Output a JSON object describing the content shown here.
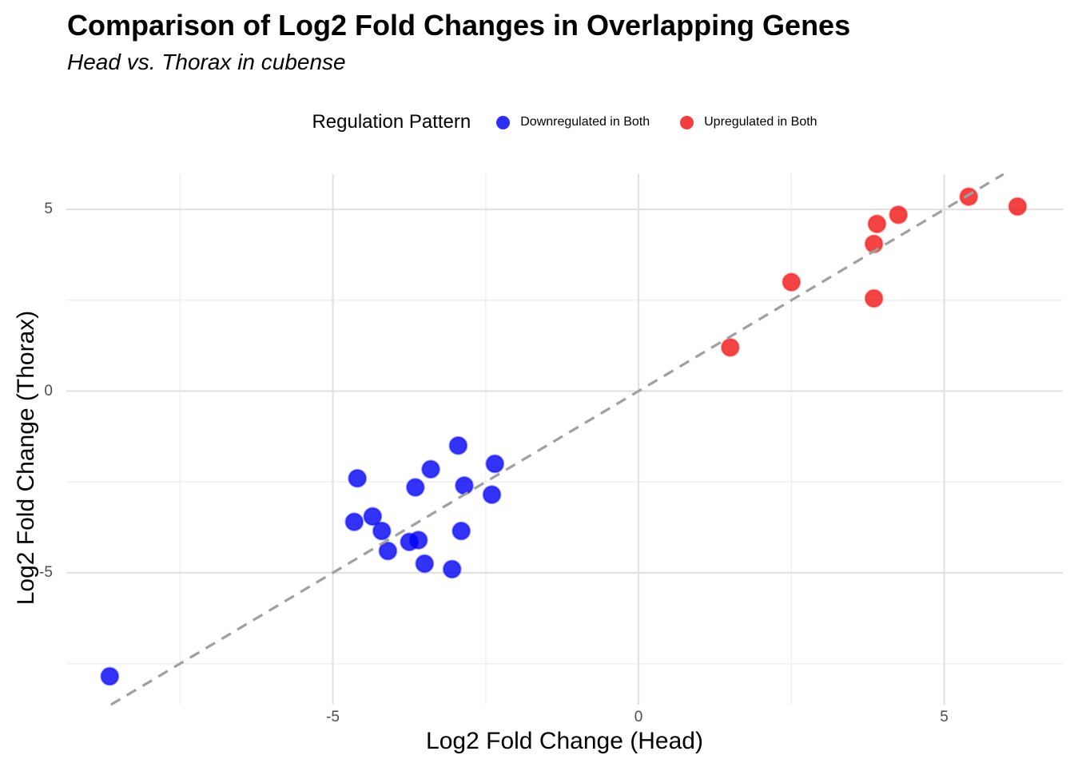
{
  "header": {
    "title": "Comparison of Log2 Fold Changes in Overlapping Genes",
    "subtitle": "Head vs. Thorax in cubense"
  },
  "legend": {
    "title": "Regulation Pattern",
    "items": [
      {
        "label": "Downregulated in Both",
        "color": "#0000F5"
      },
      {
        "label": "Upregulated in Both",
        "color": "#F01414"
      }
    ]
  },
  "chart_data": {
    "type": "scatter",
    "title": "Comparison of Log2 Fold Changes in Overlapping Genes",
    "subtitle": "Head vs. Thorax in cubense",
    "xlabel": "Log2 Fold Change (Head)",
    "ylabel": "Log2 Fold Change (Thorax)",
    "xlim": [
      -9.36,
      6.94
    ],
    "ylim": [
      -8.63,
      5.97
    ],
    "grid": "on",
    "legend_position": "top-center",
    "axes": {
      "x": {
        "major_ticks": [
          -5,
          0,
          5
        ],
        "tick_labels": [
          "-5",
          "0",
          "5"
        ],
        "minor_ticks": [
          -7.5,
          -2.5,
          2.5
        ]
      },
      "y": {
        "major_ticks": [
          -5,
          0,
          5
        ],
        "tick_labels": [
          "-5",
          "0",
          "5"
        ],
        "minor_ticks": [
          -7.5,
          -2.5,
          2.5
        ]
      }
    },
    "reference_line": {
      "type": "identity y=x",
      "style": "dashed",
      "color": "#A0A0A0"
    },
    "series": [
      {
        "name": "Downregulated in Both",
        "color": "#0000F5",
        "points": [
          [
            -8.65,
            -7.85
          ],
          [
            -4.6,
            -2.4
          ],
          [
            -3.4,
            -2.15
          ],
          [
            -2.95,
            -1.5
          ],
          [
            -3.65,
            -2.65
          ],
          [
            -2.85,
            -2.6
          ],
          [
            -2.35,
            -2.0
          ],
          [
            -2.4,
            -2.85
          ],
          [
            -4.65,
            -3.6
          ],
          [
            -4.35,
            -3.45
          ],
          [
            -4.2,
            -3.85
          ],
          [
            -2.9,
            -3.85
          ],
          [
            -3.75,
            -4.15
          ],
          [
            -3.6,
            -4.1
          ],
          [
            -4.1,
            -4.4
          ],
          [
            -3.5,
            -4.75
          ],
          [
            -3.05,
            -4.9
          ]
        ]
      },
      {
        "name": "Upregulated in Both",
        "color": "#F01414",
        "points": [
          [
            1.5,
            1.2
          ],
          [
            2.5,
            3.0
          ],
          [
            3.85,
            2.55
          ],
          [
            3.85,
            4.05
          ],
          [
            3.9,
            4.6
          ],
          [
            4.25,
            4.85
          ],
          [
            5.4,
            5.35
          ],
          [
            6.2,
            5.08
          ]
        ]
      }
    ]
  }
}
